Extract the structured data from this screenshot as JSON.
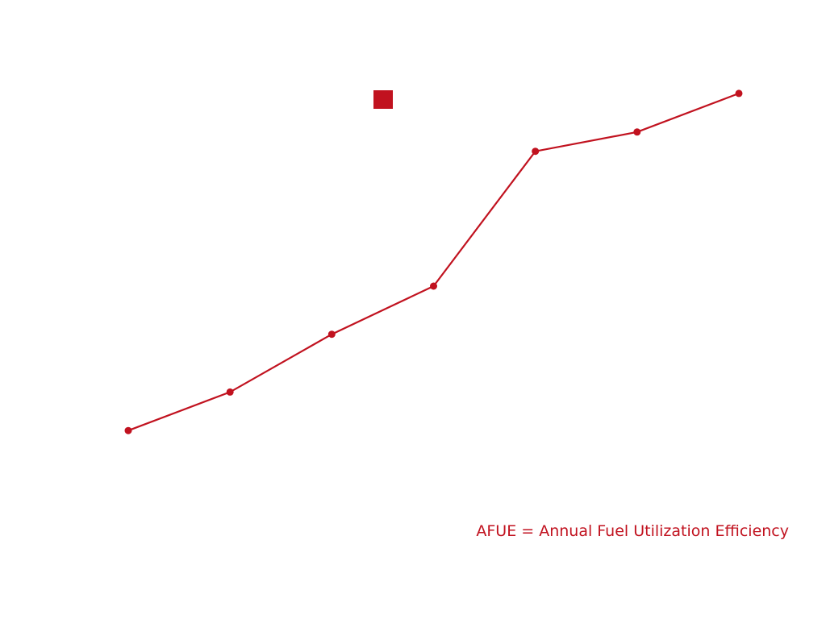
{
  "chart_data": {
    "type": "line",
    "categories": [
      "",
      "",
      "",
      "",
      "",
      "",
      ""
    ],
    "series": [
      {
        "name": "",
        "values": [
          1.0,
          2.0,
          3.5,
          4.75,
          8.25,
          8.75,
          9.75
        ]
      }
    ],
    "ylim": [
      0,
      10
    ],
    "grid": false,
    "legend": {
      "placement": "top-center"
    },
    "annotations": [
      "AFUE = Annual Fuel Utilization Efficiency"
    ]
  },
  "colors": {
    "series": "#c1121f",
    "annotation": "#c1121f"
  },
  "footnote": {
    "text": "AFUE = Annual Fuel Utilization Efficiency"
  }
}
